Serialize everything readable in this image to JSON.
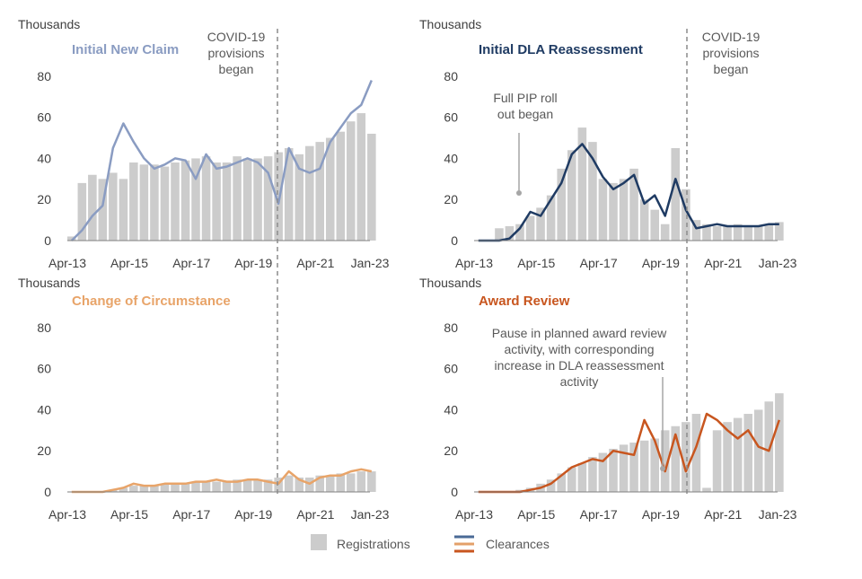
{
  "y_unit_label": "Thousands",
  "x_tick_labels": [
    "Apr-13",
    "Apr-15",
    "Apr-17",
    "Apr-19",
    "Apr-21",
    "Jan-23"
  ],
  "y_tick_labels": [
    "0",
    "20",
    "40",
    "60",
    "80"
  ],
  "legend": {
    "registrations": "Registrations",
    "clearances": "Clearances",
    "registrations_color": "#cccccc",
    "clearance_colors": [
      "#4a6a96",
      "#e3a06a",
      "#c8561f"
    ]
  },
  "chart_data": [
    {
      "type": "bar",
      "title": "Initial New Claim",
      "title_color": "#8a9cc2",
      "line_color": "#8a9cc2",
      "ylim": [
        0,
        90
      ],
      "series": [
        {
          "name": "Registrations",
          "x": [
            "2013-04",
            "2013-08",
            "2013-12",
            "2014-04",
            "2014-08",
            "2014-12",
            "2015-04",
            "2015-08",
            "2015-12",
            "2016-04",
            "2016-08",
            "2016-12",
            "2017-04",
            "2017-08",
            "2017-12",
            "2018-04",
            "2018-08",
            "2018-12",
            "2019-04",
            "2019-08",
            "2019-12",
            "2020-04",
            "2020-08",
            "2020-12",
            "2021-04",
            "2021-08",
            "2021-12",
            "2022-04",
            "2022-08",
            "2022-12"
          ],
          "values": [
            2,
            28,
            32,
            30,
            33,
            30,
            38,
            37,
            37,
            36,
            38,
            39,
            40,
            41,
            38,
            38,
            41,
            40,
            40,
            41,
            43,
            45,
            42,
            46,
            48,
            50,
            53,
            58,
            62,
            52
          ]
        },
        {
          "name": "Clearances",
          "x": [
            "2013-04",
            "2013-08",
            "2013-12",
            "2014-04",
            "2014-08",
            "2014-12",
            "2015-04",
            "2015-08",
            "2015-12",
            "2016-04",
            "2016-08",
            "2016-12",
            "2017-04",
            "2017-08",
            "2017-12",
            "2018-04",
            "2018-08",
            "2018-12",
            "2019-04",
            "2019-08",
            "2019-12",
            "2020-04",
            "2020-08",
            "2020-12",
            "2021-04",
            "2021-08",
            "2021-12",
            "2022-04",
            "2022-08",
            "2022-12"
          ],
          "values": [
            0,
            5,
            12,
            17,
            45,
            57,
            48,
            40,
            35,
            37,
            40,
            39,
            30,
            42,
            35,
            36,
            38,
            40,
            38,
            33,
            18,
            45,
            35,
            33,
            35,
            48,
            55,
            62,
            66,
            78
          ]
        }
      ],
      "annotations": [
        {
          "text": [
            "COVID-19",
            "provisions",
            "began"
          ],
          "x": "2020-03"
        }
      ]
    },
    {
      "type": "bar",
      "title": "Initial DLA Reassessment",
      "title_color": "#1f3b63",
      "line_color": "#1f3b63",
      "ylim": [
        0,
        90
      ],
      "series": [
        {
          "name": "Registrations",
          "x": [
            "2013-04",
            "2013-08",
            "2013-12",
            "2014-04",
            "2014-08",
            "2014-12",
            "2015-04",
            "2015-08",
            "2015-12",
            "2016-04",
            "2016-08",
            "2016-12",
            "2017-04",
            "2017-08",
            "2017-12",
            "2018-04",
            "2018-08",
            "2018-12",
            "2019-04",
            "2019-08",
            "2019-12",
            "2020-04",
            "2020-08",
            "2020-12",
            "2021-04",
            "2021-08",
            "2021-12",
            "2022-04",
            "2022-08",
            "2022-12"
          ],
          "values": [
            0,
            0,
            6,
            7,
            8,
            12,
            16,
            22,
            35,
            44,
            55,
            48,
            30,
            28,
            30,
            35,
            20,
            15,
            8,
            45,
            25,
            10,
            8,
            7,
            7,
            8,
            7,
            7,
            8,
            9
          ]
        },
        {
          "name": "Clearances",
          "x": [
            "2013-04",
            "2013-08",
            "2013-12",
            "2014-04",
            "2014-08",
            "2014-12",
            "2015-04",
            "2015-08",
            "2015-12",
            "2016-04",
            "2016-08",
            "2016-12",
            "2017-04",
            "2017-08",
            "2017-12",
            "2018-04",
            "2018-08",
            "2018-12",
            "2019-04",
            "2019-08",
            "2019-12",
            "2020-04",
            "2020-08",
            "2020-12",
            "2021-04",
            "2021-08",
            "2021-12",
            "2022-04",
            "2022-08",
            "2022-12"
          ],
          "values": [
            0,
            0,
            0,
            1,
            6,
            14,
            12,
            20,
            28,
            42,
            47,
            40,
            31,
            25,
            28,
            32,
            18,
            22,
            12,
            30,
            15,
            6,
            7,
            8,
            7,
            7,
            7,
            7,
            8,
            8
          ]
        }
      ],
      "annotations": [
        {
          "text": [
            "Full PIP roll",
            "out began"
          ],
          "x": "2013-10"
        },
        {
          "text": [
            "COVID-19",
            "provisions",
            "began"
          ],
          "x": "2020-03"
        }
      ]
    },
    {
      "type": "bar",
      "title": "Change of Circumstance",
      "title_color": "#e8a469",
      "line_color": "#e8a469",
      "ylim": [
        0,
        90
      ],
      "series": [
        {
          "name": "Registrations",
          "x": [
            "2013-04",
            "2013-08",
            "2013-12",
            "2014-04",
            "2014-08",
            "2014-12",
            "2015-04",
            "2015-08",
            "2015-12",
            "2016-04",
            "2016-08",
            "2016-12",
            "2017-04",
            "2017-08",
            "2017-12",
            "2018-04",
            "2018-08",
            "2018-12",
            "2019-04",
            "2019-08",
            "2019-12",
            "2020-04",
            "2020-08",
            "2020-12",
            "2021-04",
            "2021-08",
            "2021-12",
            "2022-04",
            "2022-08",
            "2022-12"
          ],
          "values": [
            0,
            0,
            0,
            0,
            1,
            2,
            3,
            3,
            3,
            4,
            4,
            4,
            5,
            5,
            5,
            5,
            6,
            6,
            6,
            6,
            7,
            8,
            7,
            7,
            8,
            8,
            9,
            9,
            10,
            10
          ]
        },
        {
          "name": "Clearances",
          "x": [
            "2013-04",
            "2013-08",
            "2013-12",
            "2014-04",
            "2014-08",
            "2014-12",
            "2015-04",
            "2015-08",
            "2015-12",
            "2016-04",
            "2016-08",
            "2016-12",
            "2017-04",
            "2017-08",
            "2017-12",
            "2018-04",
            "2018-08",
            "2018-12",
            "2019-04",
            "2019-08",
            "2019-12",
            "2020-04",
            "2020-08",
            "2020-12",
            "2021-04",
            "2021-08",
            "2021-12",
            "2022-04",
            "2022-08",
            "2022-12"
          ],
          "values": [
            0,
            0,
            0,
            0,
            1,
            2,
            4,
            3,
            3,
            4,
            4,
            4,
            5,
            5,
            6,
            5,
            5,
            6,
            6,
            5,
            4,
            10,
            6,
            4,
            7,
            8,
            8,
            10,
            11,
            10
          ]
        }
      ]
    },
    {
      "type": "bar",
      "title": "Award Review",
      "title_color": "#c8561f",
      "line_color": "#c8561f",
      "ylim": [
        0,
        90
      ],
      "series": [
        {
          "name": "Registrations",
          "x": [
            "2013-04",
            "2013-08",
            "2013-12",
            "2014-04",
            "2014-08",
            "2014-12",
            "2015-04",
            "2015-08",
            "2015-12",
            "2016-04",
            "2016-08",
            "2016-12",
            "2017-04",
            "2017-08",
            "2017-12",
            "2018-04",
            "2018-08",
            "2018-12",
            "2019-04",
            "2019-08",
            "2019-12",
            "2020-04",
            "2020-08",
            "2020-12",
            "2021-04",
            "2021-08",
            "2021-12",
            "2022-04",
            "2022-08",
            "2022-12"
          ],
          "values": [
            0,
            0,
            0,
            0,
            1,
            2,
            4,
            6,
            9,
            12,
            14,
            17,
            19,
            21,
            23,
            24,
            25,
            26,
            30,
            32,
            34,
            38,
            2,
            30,
            34,
            36,
            38,
            40,
            44,
            48
          ]
        },
        {
          "name": "Clearances",
          "x": [
            "2013-04",
            "2013-08",
            "2013-12",
            "2014-04",
            "2014-08",
            "2014-12",
            "2015-04",
            "2015-08",
            "2015-12",
            "2016-04",
            "2016-08",
            "2016-12",
            "2017-04",
            "2017-08",
            "2017-12",
            "2018-04",
            "2018-08",
            "2018-12",
            "2019-04",
            "2019-08",
            "2019-12",
            "2020-04",
            "2020-08",
            "2020-12",
            "2021-04",
            "2021-08",
            "2021-12",
            "2022-04",
            "2022-08",
            "2022-12"
          ],
          "values": [
            0,
            0,
            0,
            0,
            0,
            1,
            2,
            4,
            8,
            12,
            14,
            16,
            15,
            20,
            19,
            18,
            35,
            25,
            10,
            28,
            10,
            22,
            38,
            35,
            30,
            26,
            30,
            22,
            20,
            35
          ]
        }
      ],
      "annotations": [
        {
          "text": [
            "Pause in planned award review",
            "activity, with corresponding",
            "increase in DLA reassessment",
            "activity"
          ],
          "x": "2019-03"
        }
      ]
    }
  ]
}
